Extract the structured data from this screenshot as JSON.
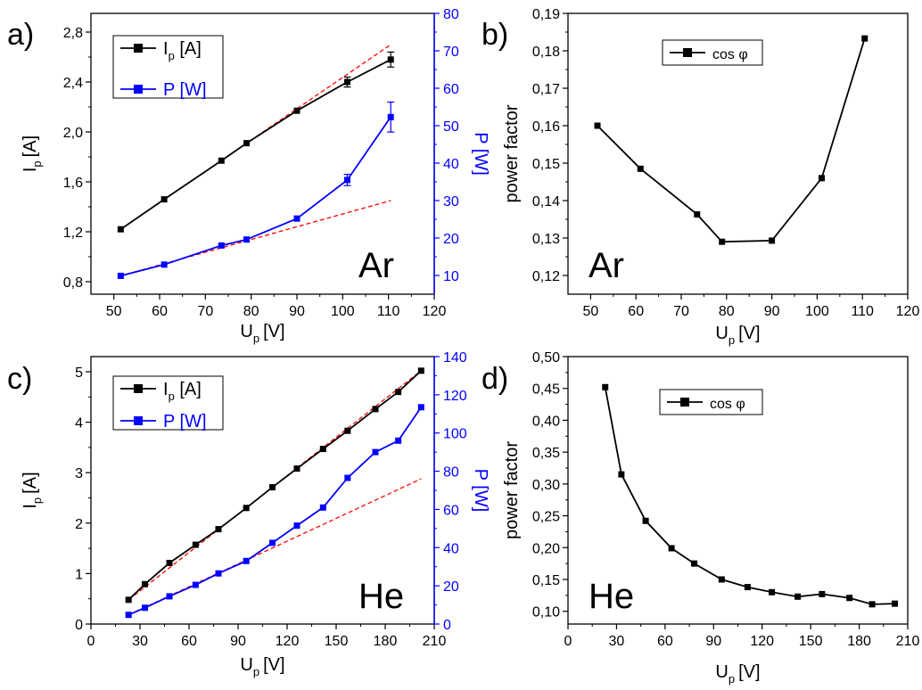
{
  "chart_data": [
    {
      "panel": "a)",
      "type": "line",
      "annotation": "Ar",
      "xlabel": {
        "main": "U",
        "sub": "p",
        "unit": "[V]"
      },
      "ylabel": {
        "main": "I",
        "sub": "p",
        "unit": "[A]"
      },
      "y2label": "P [W]",
      "xlim": [
        45,
        120
      ],
      "ylim": [
        0.7,
        2.95
      ],
      "y2lim": [
        5,
        80
      ],
      "xticks": [
        "50",
        "60",
        "70",
        "80",
        "90",
        "100",
        "110",
        "120"
      ],
      "yticks": [
        "0,8",
        "1,2",
        "1,6",
        "2,0",
        "2,4",
        "2,8"
      ],
      "y2ticks": [
        "10",
        "20",
        "30",
        "40",
        "50",
        "60",
        "70",
        "80"
      ],
      "legend": [
        {
          "main": "I",
          "sub": "p",
          "unit": " [A]",
          "color": "#000000"
        },
        {
          "main": "P [W]",
          "sub": "",
          "unit": "",
          "color": "#0000ff"
        }
      ],
      "series": [
        {
          "name": "I_p [A]",
          "axis": "left",
          "color": "#000000",
          "x": [
            51.5,
            61,
            73.5,
            79,
            90,
            101,
            110.5
          ],
          "y": [
            1.22,
            1.46,
            1.77,
            1.91,
            2.17,
            2.4,
            2.58
          ],
          "err": [
            0,
            0,
            0,
            0,
            0,
            0.04,
            0.06
          ]
        },
        {
          "name": "P [W]",
          "axis": "right",
          "color": "#0000ff",
          "x": [
            51.5,
            61,
            73.5,
            79,
            90,
            101,
            110.5
          ],
          "y": [
            9.9,
            12.9,
            18.0,
            19.6,
            25.2,
            35.5,
            52.3
          ],
          "err": [
            0,
            0,
            0,
            0,
            0,
            1.5,
            4
          ]
        }
      ],
      "fit_lines": [
        {
          "axis": "left",
          "x": [
            51.5,
            110.5
          ],
          "y": [
            1.22,
            2.7
          ],
          "color": "#ff0000"
        },
        {
          "axis": "right",
          "x": [
            51.5,
            110.5
          ],
          "y": [
            9.9,
            30.0
          ],
          "color": "#ff0000"
        }
      ]
    },
    {
      "panel": "b)",
      "type": "line",
      "annotation": "Ar",
      "xlabel": {
        "main": "U",
        "sub": "p",
        "unit": "[V]"
      },
      "ylabel": "power factor",
      "xlim": [
        45,
        120
      ],
      "ylim": [
        0.115,
        0.19
      ],
      "xticks": [
        "50",
        "60",
        "70",
        "80",
        "90",
        "100",
        "110",
        "120"
      ],
      "yticks": [
        "0,12",
        "0,13",
        "0,14",
        "0,15",
        "0,16",
        "0,17",
        "0,18",
        "0,19"
      ],
      "legend": [
        {
          "main": "cos φ",
          "color": "#000000"
        }
      ],
      "series": [
        {
          "name": "cos φ",
          "color": "#000000",
          "x": [
            51.5,
            61,
            73.5,
            79,
            90,
            101,
            110.5
          ],
          "y": [
            0.16,
            0.1485,
            0.1363,
            0.129,
            0.1293,
            0.146,
            0.1833
          ]
        }
      ]
    },
    {
      "panel": "c)",
      "type": "line",
      "annotation": "He",
      "xlabel": {
        "main": "U",
        "sub": "p",
        "unit": "[V]"
      },
      "ylabel": {
        "main": "I",
        "sub": "p",
        "unit": "[A]"
      },
      "y2label": "P [W]",
      "xlim": [
        0,
        210
      ],
      "ylim": [
        0,
        5.3
      ],
      "y2lim": [
        0,
        140
      ],
      "xticks": [
        "0",
        "30",
        "60",
        "90",
        "120",
        "150",
        "180",
        "210"
      ],
      "yticks": [
        "0",
        "1",
        "2",
        "3",
        "4",
        "5"
      ],
      "y2ticks": [
        "0",
        "20",
        "40",
        "60",
        "80",
        "100",
        "120",
        "140"
      ],
      "legend": [
        {
          "main": "I",
          "sub": "p",
          "unit": " [A]",
          "color": "#000000"
        },
        {
          "main": "P [W]",
          "sub": "",
          "unit": "",
          "color": "#0000ff"
        }
      ],
      "series": [
        {
          "name": "I_p [A]",
          "axis": "left",
          "color": "#000000",
          "x": [
            23,
            33,
            48,
            64,
            78,
            95,
            111,
            126,
            142,
            157,
            174,
            188,
            202
          ],
          "y": [
            0.48,
            0.79,
            1.21,
            1.57,
            1.88,
            2.3,
            2.71,
            3.08,
            3.47,
            3.83,
            4.26,
            4.6,
            5.02
          ]
        },
        {
          "name": "P [W]",
          "axis": "right",
          "color": "#0000ff",
          "x": [
            23,
            33,
            48,
            64,
            78,
            95,
            111,
            126,
            142,
            157,
            174,
            188,
            202
          ],
          "y": [
            4.8,
            8.5,
            14.5,
            20.5,
            26.5,
            33.0,
            42.5,
            51.5,
            61.0,
            76.5,
            90.0,
            96.0,
            113.5
          ]
        }
      ],
      "fit_lines": [
        {
          "axis": "left",
          "x": [
            23,
            202
          ],
          "y": [
            0.48,
            5.02
          ],
          "color": "#ff0000"
        },
        {
          "axis": "right",
          "x": [
            23,
            202
          ],
          "y": [
            4.8,
            76.0
          ],
          "color": "#ff0000"
        }
      ]
    },
    {
      "panel": "d)",
      "type": "line",
      "annotation": "He",
      "xlabel": {
        "main": "U",
        "sub": "p",
        "unit": "[V]"
      },
      "ylabel": "power factor",
      "xlim": [
        0,
        210
      ],
      "ylim": [
        0.08,
        0.5
      ],
      "xticks": [
        "0",
        "30",
        "60",
        "90",
        "120",
        "150",
        "180",
        "210"
      ],
      "yticks": [
        "0,10",
        "0,15",
        "0,20",
        "0,25",
        "0,30",
        "0,35",
        "0,40",
        "0,45",
        "0,50"
      ],
      "legend": [
        {
          "main": "cos φ",
          "color": "#000000"
        }
      ],
      "series": [
        {
          "name": "cos φ",
          "color": "#000000",
          "x": [
            23,
            33,
            48,
            64,
            78,
            95,
            111,
            126,
            142,
            157,
            174,
            188,
            202
          ],
          "y": [
            0.452,
            0.315,
            0.242,
            0.199,
            0.175,
            0.15,
            0.138,
            0.13,
            0.123,
            0.127,
            0.121,
            0.111,
            0.112
          ]
        }
      ]
    }
  ]
}
